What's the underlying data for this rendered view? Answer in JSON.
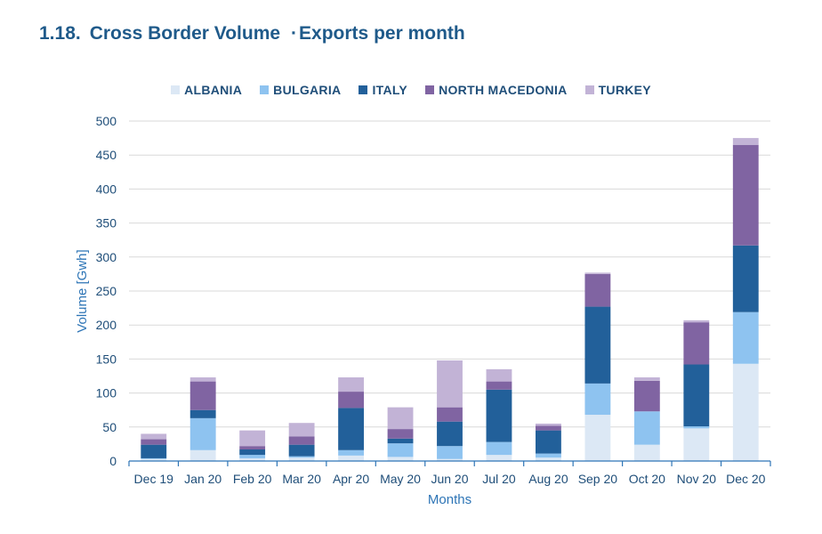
{
  "page": {
    "section_number": "1.18.",
    "title": "Cross Border Volume",
    "separator": "·",
    "subtitle": "Exports per month"
  },
  "chart_data": {
    "type": "bar",
    "stacked": true,
    "categories": [
      "Dec 19",
      "Jan 20",
      "Feb 20",
      "Mar 20",
      "Apr 20",
      "May 20",
      "Jun 20",
      "Jul 20",
      "Aug 20",
      "Sep 20",
      "Oct 20",
      "Nov 20",
      "Dec 20"
    ],
    "series": [
      {
        "name": "ALBANIA",
        "color": "#dce8f5",
        "values": [
          3,
          16,
          4,
          5,
          8,
          6,
          3,
          9,
          5,
          68,
          24,
          48,
          143
        ]
      },
      {
        "name": "BULGARIA",
        "color": "#8ec3f0",
        "values": [
          1,
          47,
          5,
          2,
          8,
          20,
          19,
          19,
          6,
          46,
          49,
          3,
          76
        ]
      },
      {
        "name": "ITALY",
        "color": "#22609a",
        "values": [
          20,
          12,
          8,
          17,
          62,
          7,
          36,
          77,
          34,
          113,
          0,
          91,
          98
        ]
      },
      {
        "name": "NORTH MACEDONIA",
        "color": "#8064a2",
        "values": [
          8,
          42,
          5,
          12,
          24,
          14,
          21,
          12,
          7,
          48,
          45,
          62,
          148
        ]
      },
      {
        "name": "TURKEY",
        "color": "#c2b3d6",
        "values": [
          8,
          6,
          23,
          20,
          21,
          32,
          69,
          18,
          3,
          2,
          5,
          3,
          10
        ]
      }
    ],
    "xlabel": "Months",
    "ylabel": "Volume [Gwh]",
    "ylim": [
      0,
      500
    ],
    "yticks": [
      0,
      50,
      100,
      150,
      200,
      250,
      300,
      350,
      400,
      450,
      500
    ],
    "grid": true,
    "legend_position": "top"
  }
}
